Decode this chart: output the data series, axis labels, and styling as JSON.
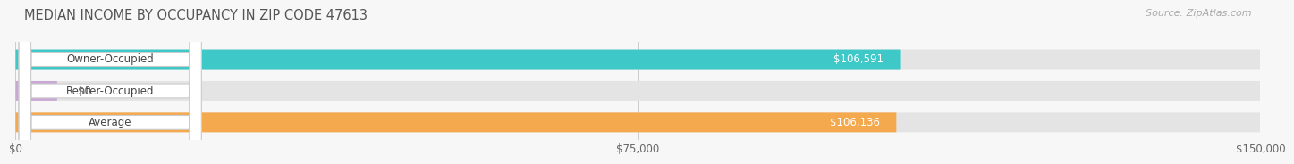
{
  "title": "MEDIAN INCOME BY OCCUPANCY IN ZIP CODE 47613",
  "source": "Source: ZipAtlas.com",
  "categories": [
    "Owner-Occupied",
    "Renter-Occupied",
    "Average"
  ],
  "values": [
    106591,
    0,
    106136
  ],
  "bar_colors": [
    "#3ec8c8",
    "#c9a8d4",
    "#f5a94e"
  ],
  "value_labels": [
    "$106,591",
    "$0",
    "$106,136"
  ],
  "xlim": [
    0,
    150000
  ],
  "xticks": [
    0,
    75000,
    150000
  ],
  "xtick_labels": [
    "$0",
    "$75,000",
    "$150,000"
  ],
  "background_color": "#f7f7f7",
  "bar_background": "#e4e4e4",
  "bar_height": 0.62,
  "title_fontsize": 10.5,
  "source_fontsize": 8,
  "label_fontsize": 8.5,
  "value_fontsize": 8.5,
  "tick_fontsize": 8.5
}
